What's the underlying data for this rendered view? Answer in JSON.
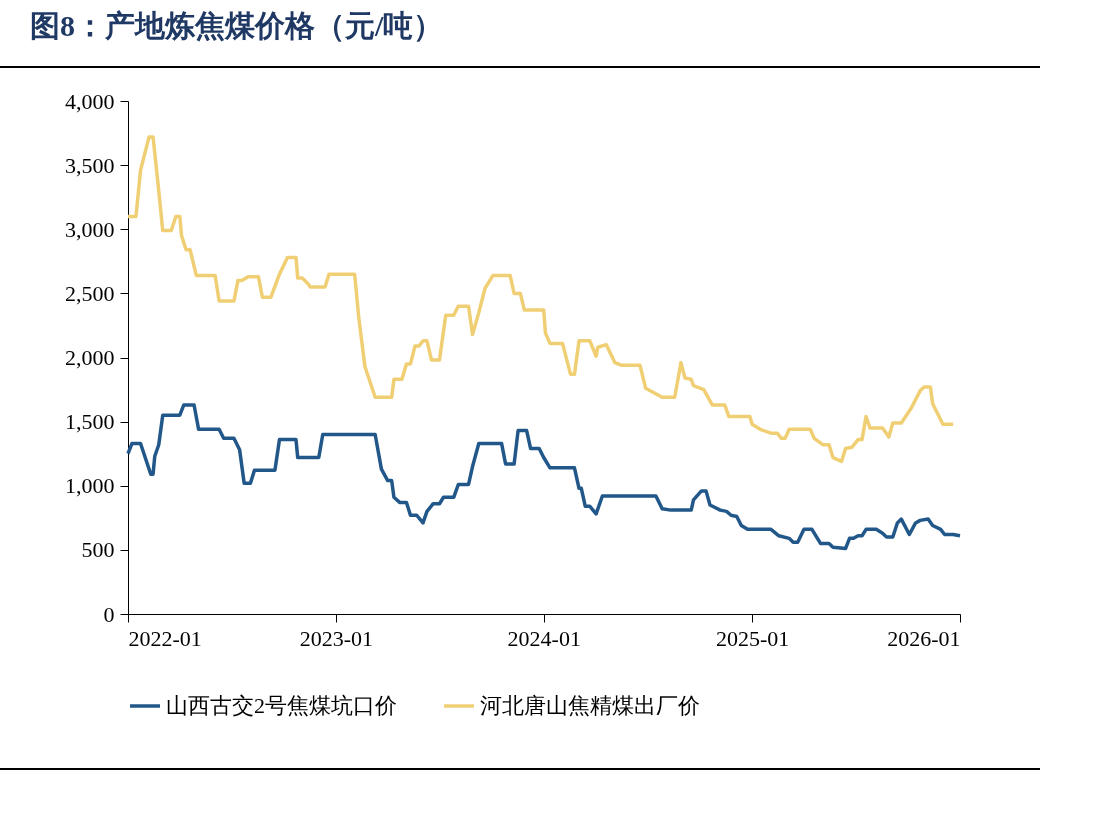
{
  "chart_data": {
    "type": "line",
    "title": "图8：产地炼焦煤价格（元/吨）",
    "xlim": [
      "2022-01",
      "2026-01"
    ],
    "xticks": [
      "2022-01",
      "2023-01",
      "2024-01",
      "2025-01",
      "2026-01"
    ],
    "ylim": [
      0,
      4000
    ],
    "yticks": [
      0,
      500,
      {
        "value": 1000,
        "label": "1,000"
      },
      {
        "value": 1500,
        "label": "1,500"
      },
      {
        "value": 2000,
        "label": "2,000"
      },
      {
        "value": 2500,
        "label": "2,500"
      },
      {
        "value": 3000,
        "label": "3,000"
      },
      {
        "value": 3500,
        "label": "3,500"
      },
      {
        "value": 4000,
        "label": "4,000"
      }
    ],
    "grid": false,
    "legend": "bottom",
    "series": [
      {
        "name": "山西古交2号焦煤坑口价",
        "color": "#22578a",
        "x": [
          "2022-01-01",
          "2022-01-08",
          "2022-01-23",
          "2022-02-10",
          "2022-02-14",
          "2022-02-17",
          "2022-02-24",
          "2022-03-03",
          "2022-04-02",
          "2022-04-09",
          "2022-04-27",
          "2022-05-05",
          "2022-06-10",
          "2022-06-18",
          "2022-07-06",
          "2022-07-16",
          "2022-07-24",
          "2022-08-04",
          "2022-08-11",
          "2022-09-16",
          "2022-09-24",
          "2022-10-23",
          "2022-10-26",
          "2022-12-02",
          "2022-12-09",
          "2023-03-11",
          "2023-03-22",
          "2023-04-02",
          "2023-04-09",
          "2023-04-13",
          "2023-04-23",
          "2023-05-05",
          "2023-05-12",
          "2023-05-23",
          "2023-06-03",
          "2023-06-10",
          "2023-06-21",
          "2023-07-02",
          "2023-07-09",
          "2023-07-27",
          "2023-08-04",
          "2023-08-22",
          "2023-08-29",
          "2023-09-09",
          "2023-10-19",
          "2023-10-26",
          "2023-11-10",
          "2023-11-17",
          "2023-12-02",
          "2023-12-09",
          "2023-12-24",
          "2024-01-01",
          "2024-01-12",
          "2024-02-24",
          "2024-03-03",
          "2024-03-07",
          "2024-03-14",
          "2024-03-22",
          "2024-04-02",
          "2024-04-13",
          "2024-07-16",
          "2024-07-27",
          "2024-08-11",
          "2024-09-16",
          "2024-09-20",
          "2024-10-04",
          "2024-10-12",
          "2024-10-19",
          "2024-11-06",
          "2024-11-17",
          "2024-11-25",
          "2024-12-05",
          "2024-12-13",
          "2024-12-24",
          "2025-02-03",
          "2025-02-17",
          "2025-03-07",
          "2025-03-14",
          "2025-03-22",
          "2025-04-02",
          "2025-04-16",
          "2025-05-01",
          "2025-05-16",
          "2025-05-23",
          "2025-06-14",
          "2025-06-21",
          "2025-06-28",
          "2025-07-06",
          "2025-07-13",
          "2025-07-20",
          "2025-08-07",
          "2025-08-18",
          "2025-08-25",
          "2025-09-05",
          "2025-09-13",
          "2025-09-20",
          "2025-10-04",
          "2025-10-15",
          "2025-10-23",
          "2025-11-06",
          "2025-11-14",
          "2025-11-28",
          "2025-12-05",
          "2025-12-20",
          "2026-01-01"
        ],
        "values": [
          1250,
          1330,
          1330,
          1090,
          1090,
          1230,
          1320,
          1550,
          1550,
          1630,
          1630,
          1440,
          1440,
          1370,
          1370,
          1280,
          1020,
          1020,
          1120,
          1120,
          1360,
          1360,
          1220,
          1220,
          1400,
          1400,
          1130,
          1040,
          1040,
          910,
          870,
          870,
          770,
          770,
          710,
          800,
          860,
          860,
          910,
          910,
          1010,
          1010,
          1150,
          1330,
          1330,
          1170,
          1170,
          1430,
          1430,
          1290,
          1290,
          1220,
          1140,
          1140,
          980,
          980,
          840,
          840,
          780,
          920,
          920,
          820,
          810,
          810,
          890,
          960,
          960,
          850,
          810,
          800,
          770,
          760,
          690,
          660,
          660,
          610,
          590,
          560,
          560,
          660,
          660,
          550,
          550,
          520,
          510,
          590,
          590,
          610,
          610,
          660,
          660,
          630,
          600,
          600,
          710,
          740,
          620,
          710,
          730,
          740,
          690,
          660,
          620,
          620,
          610
        ]
      },
      {
        "name": "河北唐山焦精煤出厂价",
        "color": "#f0cf74",
        "x": [
          "2022-01-01",
          "2022-01-15",
          "2022-01-23",
          "2022-02-07",
          "2022-02-14",
          "2022-02-24",
          "2022-03-03",
          "2022-03-18",
          "2022-03-26",
          "2022-04-02",
          "2022-04-05",
          "2022-04-13",
          "2022-04-20",
          "2022-05-01",
          "2022-06-03",
          "2022-06-10",
          "2022-07-06",
          "2022-07-13",
          "2022-07-20",
          "2022-07-31",
          "2022-08-18",
          "2022-08-25",
          "2022-09-09",
          "2022-09-24",
          "2022-10-08",
          "2022-10-23",
          "2022-10-26",
          "2022-11-03",
          "2022-11-14",
          "2022-11-17",
          "2022-12-13",
          "2022-12-20",
          "2023-02-03",
          "2023-02-10",
          "2023-02-21",
          "2023-03-11",
          "2023-04-09",
          "2023-04-13",
          "2023-04-27",
          "2023-05-05",
          "2023-05-12",
          "2023-05-20",
          "2023-05-27",
          "2023-06-03",
          "2023-06-10",
          "2023-06-18",
          "2023-07-02",
          "2023-07-06",
          "2023-07-13",
          "2023-07-27",
          "2023-08-04",
          "2023-08-22",
          "2023-08-29",
          "2023-09-09",
          "2023-09-20",
          "2023-10-04",
          "2023-11-03",
          "2023-11-10",
          "2023-11-21",
          "2023-11-28",
          "2024-01-01",
          "2024-01-04",
          "2024-01-12",
          "2024-02-03",
          "2024-02-17",
          "2024-02-24",
          "2024-03-03",
          "2024-03-22",
          "2024-04-02",
          "2024-04-05",
          "2024-04-20",
          "2024-05-05",
          "2024-05-16",
          "2024-06-18",
          "2024-06-28",
          "2024-07-27",
          "2024-08-18",
          "2024-08-29",
          "2024-09-05",
          "2024-09-16",
          "2024-09-20",
          "2024-10-08",
          "2024-10-23",
          "2024-11-14",
          "2024-11-21",
          "2024-12-28",
          "2025-01-01",
          "2025-01-15",
          "2025-02-03",
          "2025-02-14",
          "2025-02-21",
          "2025-02-28",
          "2025-03-07",
          "2025-04-13",
          "2025-04-20",
          "2025-05-05",
          "2025-05-16",
          "2025-05-23",
          "2025-06-07",
          "2025-06-14",
          "2025-06-25",
          "2025-07-06",
          "2025-07-13",
          "2025-07-20",
          "2025-07-27",
          "2025-08-18",
          "2025-08-29",
          "2025-09-05",
          "2025-09-20",
          "2025-10-08",
          "2025-10-23",
          "2025-10-30",
          "2025-11-10",
          "2025-11-14",
          "2025-12-02",
          "2025-12-20"
        ],
        "values": [
          3100,
          3100,
          3460,
          3720,
          3720,
          3300,
          2990,
          2990,
          3100,
          3100,
          2950,
          2840,
          2840,
          2640,
          2640,
          2440,
          2440,
          2600,
          2600,
          2630,
          2630,
          2470,
          2470,
          2650,
          2780,
          2780,
          2620,
          2620,
          2570,
          2550,
          2550,
          2650,
          2650,
          2320,
          1930,
          1690,
          1690,
          1830,
          1830,
          1950,
          1950,
          2090,
          2090,
          2130,
          2130,
          1980,
          1980,
          2110,
          2330,
          2330,
          2400,
          2400,
          2180,
          2350,
          2540,
          2640,
          2640,
          2500,
          2500,
          2370,
          2370,
          2190,
          2110,
          2110,
          1870,
          1870,
          2130,
          2130,
          2010,
          2080,
          2100,
          1960,
          1940,
          1940,
          1760,
          1690,
          1690,
          1960,
          1840,
          1830,
          1780,
          1750,
          1630,
          1630,
          1540,
          1540,
          1480,
          1440,
          1410,
          1410,
          1370,
          1370,
          1440,
          1440,
          1370,
          1320,
          1320,
          1220,
          1190,
          1290,
          1300,
          1360,
          1360,
          1540,
          1450,
          1450,
          1380,
          1490,
          1490,
          1610,
          1740,
          1770,
          1770,
          1640,
          1480,
          1480
        ]
      }
    ]
  }
}
